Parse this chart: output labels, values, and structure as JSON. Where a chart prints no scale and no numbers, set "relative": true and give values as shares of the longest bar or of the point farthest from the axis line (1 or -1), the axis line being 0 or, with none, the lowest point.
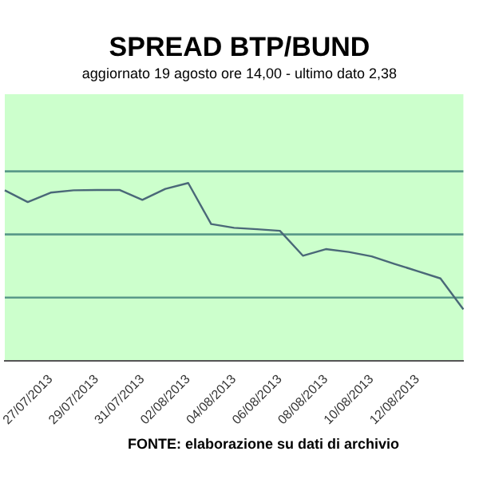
{
  "chart_data": {
    "type": "line",
    "title": "SPREAD BTP/BUND",
    "subtitle": "aggiornato 19 agosto ore 14,00 - ultimo dato 2,38",
    "annotations": [
      "FONTE: elaborazione su dati di archivio"
    ],
    "relative": true,
    "categories": [
      null,
      null,
      "27/07/2013",
      null,
      "29/07/2013",
      null,
      "31/07/2013",
      null,
      "02/08/2013",
      null,
      "04/08/2013",
      null,
      "06/08/2013",
      null,
      "08/08/2013",
      null,
      "10/08/2013",
      null,
      "12/08/2013",
      null,
      null
    ],
    "series": [
      {
        "color": "#4a6878",
        "values": [
          0.959,
          0.893,
          0.946,
          0.959,
          0.961,
          0.961,
          0.905,
          0.967,
          1,
          0.769,
          0.748,
          0.74,
          0.731,
          0.591,
          0.628,
          0.612,
          0.587,
          0.545,
          0.504,
          0.463,
          0.289
        ]
      }
    ],
    "ref_lines": [
      {
        "axis": "y",
        "value": 0.355,
        "color": "#5a9a8a"
      },
      {
        "axis": "y",
        "value": 0.711,
        "color": "#5a9a8a"
      },
      {
        "axis": "y",
        "value": 1.066,
        "color": "#5a9a8a"
      }
    ],
    "legend": false,
    "marker": "none",
    "line_style": "solid"
  }
}
